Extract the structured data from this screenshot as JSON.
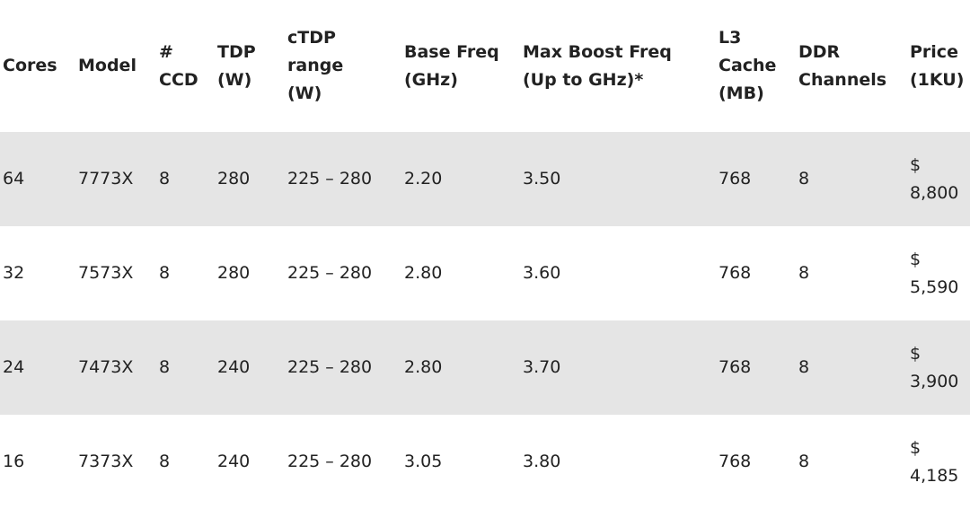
{
  "table": {
    "headers": [
      [
        "Cores"
      ],
      [
        "Model"
      ],
      [
        "#",
        "CCD"
      ],
      [
        "TDP",
        "(W)"
      ],
      [
        "cTDP",
        "range",
        "(W)"
      ],
      [
        "Base Freq",
        "(GHz)"
      ],
      [
        "Max Boost Freq",
        "(Up to GHz)*"
      ],
      [
        "L3",
        "Cache",
        "(MB)"
      ],
      [
        "DDR",
        "Channels"
      ],
      [
        "Price",
        "(1KU)"
      ]
    ],
    "rows": [
      [
        "64",
        "7773X",
        "8",
        "280",
        "225 – 280",
        "2.20",
        "3.50",
        "768",
        "8",
        "$ 8,800"
      ],
      [
        "32",
        "7573X",
        "8",
        "280",
        "225 – 280",
        "2.80",
        "3.60",
        "768",
        "8",
        "$ 5,590"
      ],
      [
        "24",
        "7473X",
        "8",
        "240",
        "225 – 280",
        "2.80",
        "3.70",
        "768",
        "8",
        "$ 3,900"
      ],
      [
        "16",
        "7373X",
        "8",
        "240",
        "225 – 280",
        "3.05",
        "3.80",
        "768",
        "8",
        "$ 4,185"
      ]
    ]
  }
}
